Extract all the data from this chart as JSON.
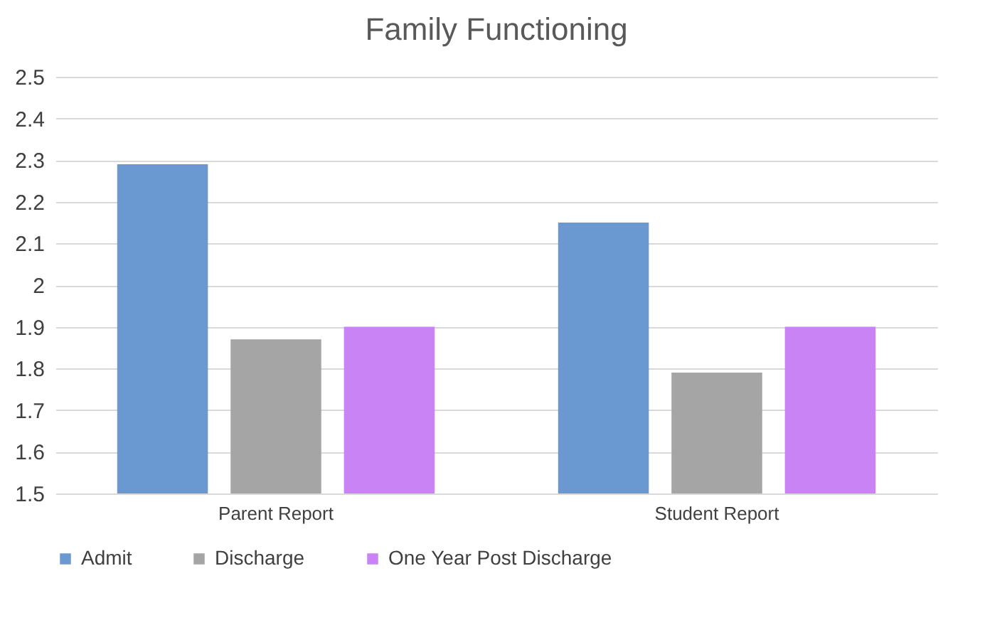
{
  "chart_data": {
    "type": "bar",
    "title": "Family Functioning",
    "categories": [
      "Parent Report",
      "Student Report"
    ],
    "series": [
      {
        "name": "Admit",
        "color": "#6a98d0",
        "values": [
          2.29,
          2.15
        ]
      },
      {
        "name": "Discharge",
        "color": "#a5a5a5",
        "values": [
          1.87,
          1.79
        ]
      },
      {
        "name": "One Year Post Discharge",
        "color": "#c983f5",
        "values": [
          1.9,
          1.9
        ]
      }
    ],
    "ylim": [
      1.5,
      2.5
    ],
    "yticks": [
      1.5,
      1.6,
      1.7,
      1.8,
      1.9,
      {
        "value": 2,
        "label": "2"
      },
      2.1,
      2.2,
      2.3,
      2.4,
      2.5
    ],
    "grid": "y",
    "legend": "bottom"
  }
}
